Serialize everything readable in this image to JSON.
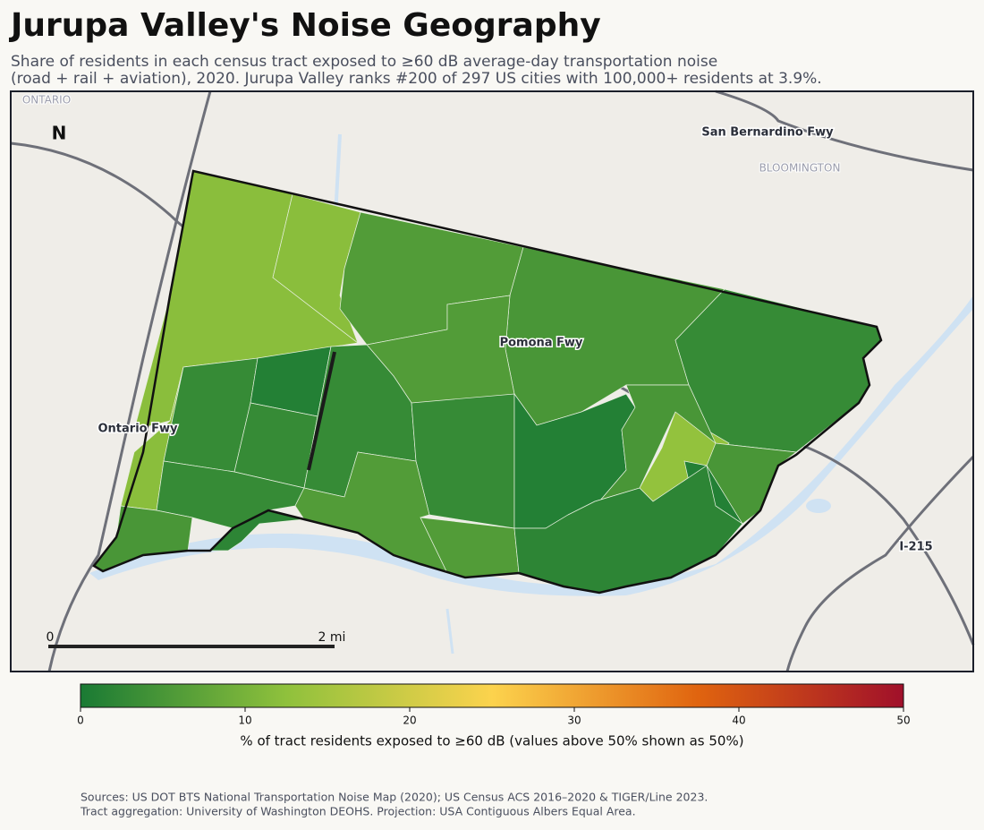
{
  "title": "Jurupa Valley's Noise Geography",
  "subtitle_lines": [
    "Share of residents in each census tract exposed to ≥60 dB average-day transportation noise",
    "(road + rail + aviation), 2020. Jurupa Valley ranks #200 of 297 US cities with 100,000+ residents at 3.9%."
  ],
  "map": {
    "place_labels": [
      "ONTARIO",
      "BLOOMINGTON"
    ],
    "road_labels": [
      "San Bernardino Fwy",
      "Pomona Fwy",
      "Ontario Fwy",
      "I-215"
    ],
    "north_label": "N",
    "scale_bar_labels": [
      "0",
      "2 mi"
    ]
  },
  "tracts": {
    "values": [
      12,
      12,
      6,
      5,
      3,
      6,
      12,
      3,
      1,
      3,
      3,
      3,
      3,
      1,
      13,
      5,
      5,
      1,
      6,
      6,
      2,
      5,
      2
    ]
  },
  "colorbar": {
    "lim": [
      0,
      50
    ],
    "ticks": [
      0,
      10,
      20,
      30,
      40,
      50
    ],
    "colors": [
      "#1a7a34",
      "#8fc13c",
      "#fcd34d",
      "#e0640f",
      "#a0102a"
    ],
    "label": "% of tract residents exposed to ≥60 dB (values above 50% shown as 50%)"
  },
  "sources": [
    "Sources: US DOT BTS National Transportation Noise Map (2020); US Census ACS 2016–2020 & TIGER/Line 2023.",
    "Tract aggregation: University of Washington DEOHS. Projection: USA Contiguous Albers Equal Area."
  ]
}
